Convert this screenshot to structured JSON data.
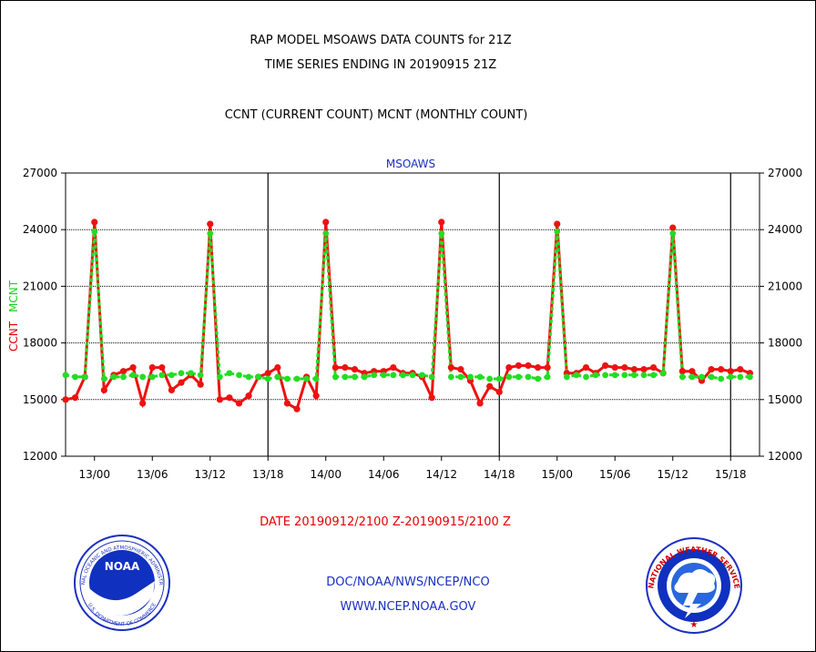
{
  "header": {
    "title_line1": "RAP MODEL MSOAWS DATA COUNTS for 21Z",
    "title_line2": "TIME SERIES ENDING IN 20190915 21Z",
    "subtitle": "CCNT (CURRENT COUNT) MCNT (MONTHLY COUNT)"
  },
  "footer": {
    "date_range": "DATE 20190912/2100 Z-20190915/2100 Z",
    "credit_org": "DOC/NOAA/NWS/NCEP/NCO",
    "credit_url": "WWW.NCEP.NOAA.GOV"
  },
  "logos": {
    "noaa_ring": "NATIONAL OCEANIC AND ATMOSPHERIC ADMINISTRATION",
    "noaa_bottom": "U.S. DEPARTMENT OF COMMERCE",
    "noaa_center": "NOAA",
    "nws_ring": "NATIONAL WEATHER SERVICE"
  },
  "colors": {
    "ccnt": "#ee1111",
    "mcnt": "#22dd22",
    "plot_label": "#1a2fbf",
    "date_text": "#e00000"
  },
  "chart_data": {
    "type": "line",
    "plot_label": "MSOAWS",
    "ylabel_ccnt": "CCNT",
    "ylabel_mcnt": "MCNT",
    "ylim": [
      12000,
      27000
    ],
    "yticks": [
      12000,
      15000,
      18000,
      21000,
      24000,
      27000
    ],
    "ytick_labels": [
      "12000",
      "15000",
      "18000",
      "21000",
      "24000",
      "27000"
    ],
    "xlim": [
      -3,
      69
    ],
    "xticks": [
      0,
      6,
      12,
      18,
      24,
      30,
      36,
      42,
      48,
      54,
      60,
      66
    ],
    "xtick_labels": [
      "13/00",
      "13/06",
      "13/12",
      "13/18",
      "14/00",
      "14/06",
      "14/12",
      "14/18",
      "15/00",
      "15/06",
      "15/12",
      "15/18"
    ],
    "x_unit": "hours from 13/00",
    "day_dividers": [
      18,
      42,
      66
    ],
    "grid": "horizontal",
    "series": [
      {
        "name": "CCNT",
        "x": [
          -3,
          -2,
          -1,
          0,
          1,
          2,
          3,
          4,
          5,
          6,
          7,
          8,
          9,
          10,
          11,
          12,
          13,
          14,
          15,
          16,
          17,
          18,
          19,
          20,
          21,
          22,
          23,
          24,
          25,
          26,
          27,
          28,
          29,
          30,
          31,
          32,
          33,
          34,
          35,
          36,
          37,
          38,
          39,
          40,
          41,
          42,
          43,
          44,
          45,
          46,
          47,
          48,
          49,
          50,
          51,
          52,
          53,
          54,
          55,
          56,
          57,
          58,
          59,
          60,
          61,
          62,
          63,
          64,
          65,
          66,
          67,
          68
        ],
        "values": [
          15000,
          15100,
          16200,
          24400,
          15500,
          16300,
          16500,
          16700,
          14800,
          16700,
          16700,
          15500,
          15900,
          16300,
          15800,
          24300,
          15000,
          15100,
          14800,
          15200,
          16200,
          16400,
          16700,
          14800,
          14500,
          16200,
          15200,
          24400,
          16700,
          16700,
          16600,
          16400,
          16500,
          16500,
          16700,
          16400,
          16400,
          16200,
          15100,
          24400,
          16700,
          16600,
          16000,
          14800,
          15700,
          15400,
          16700,
          16800,
          16800,
          16700,
          16700,
          24300,
          16400,
          16400,
          16700,
          16400,
          16800,
          16700,
          16700,
          16600,
          16600,
          16700,
          16400,
          24100,
          16500,
          16500,
          16000,
          16600,
          16600,
          16500,
          16600,
          16400
        ]
      },
      {
        "name": "MCNT",
        "x": [
          -3,
          -2,
          -1,
          0,
          1,
          2,
          3,
          4,
          5,
          6,
          7,
          8,
          9,
          10,
          11,
          12,
          13,
          14,
          15,
          16,
          17,
          18,
          19,
          20,
          21,
          22,
          23,
          24,
          25,
          26,
          27,
          28,
          29,
          30,
          31,
          32,
          33,
          34,
          35,
          36,
          37,
          38,
          39,
          40,
          41,
          42,
          43,
          44,
          45,
          46,
          47,
          48,
          49,
          50,
          51,
          52,
          53,
          54,
          55,
          56,
          57,
          58,
          59,
          60,
          61,
          62,
          63,
          64,
          65,
          66,
          67,
          68
        ],
        "values": [
          16300,
          16200,
          16200,
          23900,
          16100,
          16200,
          16200,
          16300,
          16200,
          16200,
          16300,
          16300,
          16400,
          16400,
          16300,
          23800,
          16200,
          16400,
          16300,
          16200,
          16200,
          16100,
          16200,
          16100,
          16100,
          16100,
          16100,
          23800,
          16200,
          16200,
          16200,
          16200,
          16300,
          16300,
          16300,
          16300,
          16300,
          16300,
          16200,
          23800,
          16200,
          16200,
          16200,
          16200,
          16100,
          16100,
          16200,
          16200,
          16200,
          16100,
          16200,
          23900,
          16200,
          16300,
          16200,
          16300,
          16300,
          16300,
          16300,
          16300,
          16300,
          16300,
          16400,
          23800,
          16200,
          16200,
          16200,
          16200,
          16100,
          16200,
          16200,
          16200
        ]
      }
    ]
  }
}
